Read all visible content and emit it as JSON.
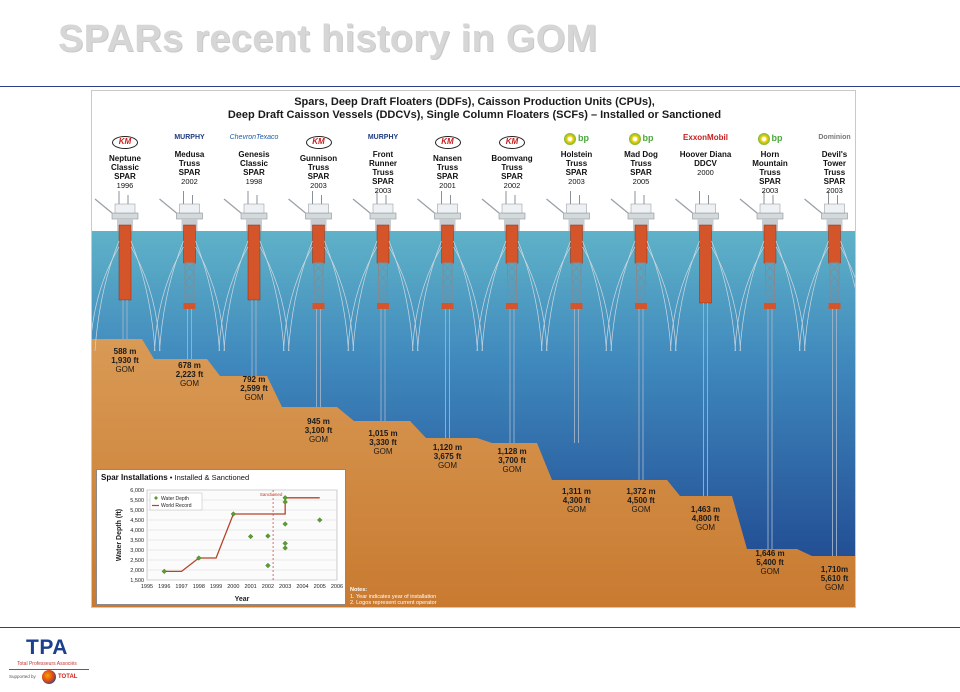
{
  "slide": {
    "title": "SPARs recent history in GOM"
  },
  "poster": {
    "title_lines": [
      "Spars, Deep Draft Floaters (DDFs), Caisson Production Units (CPUs),",
      "Deep Draft Caisson Vessels (DDCVs), Single Column Floaters (SCFs) – Installed or Sanctioned"
    ],
    "colors": {
      "sky": "#ffffff",
      "water_top": "#5fb2c8",
      "water_bottom": "#1b3f8a",
      "seabed": "#d48a3d",
      "hull": "#d5552a",
      "truss": "#7f8c95"
    },
    "units": [
      {
        "logo": "Kerr-McGee",
        "logo_text": "KM",
        "name": [
          "Neptune",
          "Classic",
          "SPAR"
        ],
        "year": "1996",
        "depth_m": "588 m",
        "depth_ft": "1,930 ft",
        "region": "GOM",
        "type": "classic"
      },
      {
        "logo": "Murphy",
        "logo_text": "MURPHY",
        "name": [
          "Medusa",
          "Truss",
          "SPAR"
        ],
        "year": "2002",
        "depth_m": "678 m",
        "depth_ft": "2,223 ft",
        "region": "GOM",
        "type": "truss"
      },
      {
        "logo": "ChevronTexaco",
        "logo_text": "ChevronTexaco",
        "name": [
          "Genesis",
          "Classic",
          "SPAR"
        ],
        "year": "1998",
        "depth_m": "792 m",
        "depth_ft": "2,599 ft",
        "region": "GOM",
        "type": "classic"
      },
      {
        "logo": "Kerr-McGee",
        "logo_text": "KM",
        "name": [
          "Gunnison",
          "Truss",
          "SPAR"
        ],
        "year": "2003",
        "depth_m": "945 m",
        "depth_ft": "3,100 ft",
        "region": "GOM",
        "type": "truss"
      },
      {
        "logo": "Murphy",
        "logo_text": "MURPHY",
        "name": [
          "Front",
          "Runner",
          "Truss",
          "SPAR"
        ],
        "year": "2003",
        "depth_m": "1,015 m",
        "depth_ft": "3,330 ft",
        "region": "GOM",
        "type": "truss"
      },
      {
        "logo": "Kerr-McGee",
        "logo_text": "KM",
        "name": [
          "Nansen",
          "Truss",
          "SPAR"
        ],
        "year": "2001",
        "depth_m": "1,120 m",
        "depth_ft": "3,675 ft",
        "region": "GOM",
        "type": "truss"
      },
      {
        "logo": "Kerr-McGee",
        "logo_text": "KM",
        "name": [
          "Boomvang",
          "Truss",
          "SPAR"
        ],
        "year": "2002",
        "depth_m": "1,128 m",
        "depth_ft": "3,700 ft",
        "region": "GOM",
        "type": "truss"
      },
      {
        "logo": "bp",
        "logo_text": "bp",
        "name": [
          "Holstein",
          "Truss",
          "SPAR"
        ],
        "year": "2003",
        "depth_m": "1,311 m",
        "depth_ft": "4,300 ft",
        "region": "GOM",
        "type": "truss"
      },
      {
        "logo": "bp",
        "logo_text": "bp",
        "name": [
          "Mad Dog",
          "Truss",
          "SPAR"
        ],
        "year": "2005",
        "depth_m": "1,372 m",
        "depth_ft": "4,500 ft",
        "region": "GOM",
        "type": "truss"
      },
      {
        "logo": "ExxonMobil",
        "logo_text": "ExxonMobil",
        "name": [
          "Hoover Diana",
          "DDCV"
        ],
        "year": "2000",
        "depth_m": "1,463 m",
        "depth_ft": "4,800 ft",
        "region": "GOM",
        "type": "ddcv"
      },
      {
        "logo": "bp",
        "logo_text": "bp",
        "name": [
          "Horn",
          "Mountain",
          "Truss",
          "SPAR"
        ],
        "year": "2003",
        "depth_m": "1,646 m",
        "depth_ft": "5,400 ft",
        "region": "GOM",
        "type": "truss"
      },
      {
        "logo": "Dominion",
        "logo_text": "Dominion",
        "name": [
          "Devil's",
          "Tower",
          "Truss",
          "SPAR"
        ],
        "year": "2003",
        "depth_m": "1,710m",
        "depth_ft": "5,610 ft",
        "region": "GOM",
        "type": "truss"
      }
    ],
    "inset": {
      "title": "Spar Installations",
      "subtitle": "• Installed & Sanctioned",
      "legend": [
        "Water Depth",
        "World Record"
      ],
      "ylabel": "Water Depth (ft)",
      "xlabel": "Year",
      "annotation": "Sanctioned",
      "yticks": [
        "6,000",
        "5,500",
        "5,000",
        "4,500",
        "4,000",
        "3,500",
        "3,000",
        "2,500",
        "2,000",
        "1,500"
      ],
      "xticks": [
        "1995",
        "1996",
        "1997",
        "1998",
        "1999",
        "2000",
        "2001",
        "2002",
        "2003",
        "2004",
        "2005",
        "2006"
      ],
      "ylim": [
        1500,
        6000
      ],
      "xlim": [
        1995,
        2006
      ],
      "water_depth_points": [
        {
          "year": 1996,
          "depth": 1930
        },
        {
          "year": 1998,
          "depth": 2599
        },
        {
          "year": 2000,
          "depth": 4800
        },
        {
          "year": 2001,
          "depth": 3675
        },
        {
          "year": 2002,
          "depth": 2223
        },
        {
          "year": 2002,
          "depth": 3700
        },
        {
          "year": 2003,
          "depth": 3100
        },
        {
          "year": 2003,
          "depth": 3330
        },
        {
          "year": 2003,
          "depth": 4300
        },
        {
          "year": 2003,
          "depth": 5400
        },
        {
          "year": 2003,
          "depth": 5610
        },
        {
          "year": 2005,
          "depth": 4500
        }
      ],
      "world_record_steps": [
        {
          "year": 1996,
          "depth": 1930
        },
        {
          "year": 1997,
          "depth": 1930
        },
        {
          "year": 1998,
          "depth": 2599
        },
        {
          "year": 1999,
          "depth": 2599
        },
        {
          "year": 2000,
          "depth": 4800
        },
        {
          "year": 2003,
          "depth": 4800
        },
        {
          "year": 2003,
          "depth": 5610
        },
        {
          "year": 2005,
          "depth": 5610
        }
      ],
      "sanctioned_year": 2002.3,
      "colors": {
        "points": "#5a9e2f",
        "record": "#b5442a",
        "grid": "#d9d9d9"
      },
      "notes_title": "Notes:",
      "notes": [
        "1. Year indicates year of installation",
        "2. Logos represent current operator"
      ]
    }
  },
  "footer": {
    "brand": "TPA",
    "brand_sub": "Total Professeurs Associés",
    "supported": "Supported by",
    "partner": "TOTAL"
  }
}
